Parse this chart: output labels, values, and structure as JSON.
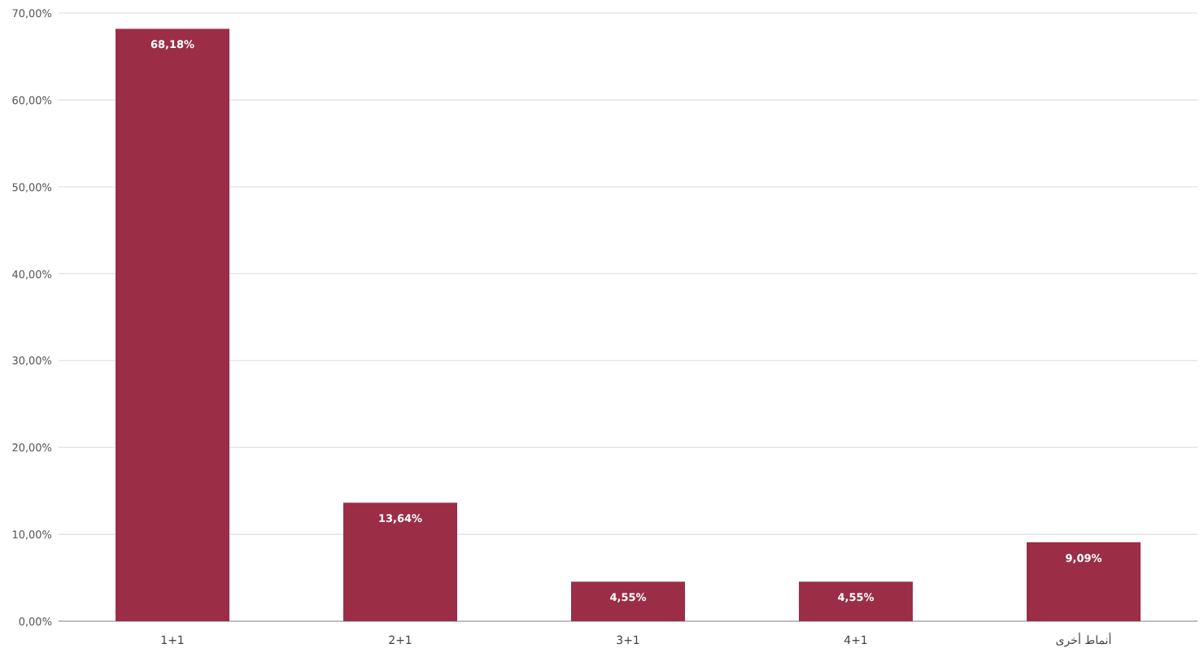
{
  "chart_data": {
    "type": "bar",
    "categories": [
      "1+1",
      "2+1",
      "3+1",
      "4+1",
      "أنماط أخرى"
    ],
    "values": [
      68.18,
      13.64,
      4.55,
      4.55,
      9.09
    ],
    "value_labels": [
      "68,18%",
      "13,64%",
      "4,55%",
      "4,55%",
      "9,09%"
    ],
    "color": "#9b2d46",
    "ylim": [
      0,
      70
    ],
    "yticks": [
      {
        "value": 0,
        "label": "0,00%"
      },
      {
        "value": 10,
        "label": "10,00%"
      },
      {
        "value": 20,
        "label": "20,00%"
      },
      {
        "value": 30,
        "label": "30,00%"
      },
      {
        "value": 40,
        "label": "40,00%"
      },
      {
        "value": 50,
        "label": "50,00%"
      },
      {
        "value": 60,
        "label": "60,00%"
      },
      {
        "value": 70,
        "label": "70,00%"
      }
    ],
    "grid": "y"
  }
}
